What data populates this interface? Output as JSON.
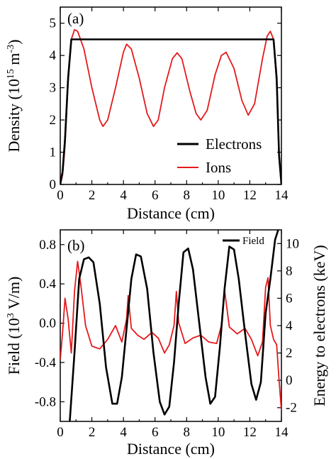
{
  "figure": {
    "colors": {
      "electrons": "#000000",
      "ions": "#e41a1c",
      "field": "#000000",
      "energy": "#e41a1c"
    }
  },
  "chart_data": [
    {
      "type": "line",
      "panel_label": "(a)",
      "xlabel": "Distance (cm)",
      "ylabel_main": "Density (10",
      "ylabel_exp1": "15",
      "ylabel_mid": " m",
      "ylabel_exp2": "-3",
      "ylabel_end": ")",
      "xlim": [
        0,
        14
      ],
      "ylim": [
        0,
        5.5
      ],
      "xticks": [
        "0",
        "2",
        "4",
        "6",
        "8",
        "10",
        "12",
        "14"
      ],
      "yticks": [
        "0",
        "1",
        "2",
        "3",
        "4",
        "5"
      ],
      "legend_position": "lower-right",
      "series": [
        {
          "name": "Electrons",
          "color": "#000000",
          "x": [
            0,
            0.15,
            0.3,
            0.5,
            0.7,
            13.5,
            13.7,
            13.85,
            14
          ],
          "y": [
            0,
            0.4,
            1.4,
            3.3,
            4.5,
            4.5,
            3.3,
            0.9,
            0
          ]
        },
        {
          "name": "Ions",
          "color": "#e41a1c",
          "x": [
            0,
            0.15,
            0.3,
            0.5,
            0.7,
            0.9,
            1.1,
            1.5,
            2.0,
            2.5,
            2.7,
            3.0,
            3.5,
            4.0,
            4.2,
            4.5,
            5.0,
            5.5,
            5.9,
            6.2,
            6.6,
            7.1,
            7.4,
            7.7,
            8.2,
            8.6,
            8.9,
            9.3,
            9.8,
            10.2,
            10.5,
            11.0,
            11.5,
            11.9,
            12.3,
            12.8,
            13.1,
            13.3,
            13.5,
            13.7,
            13.85,
            14
          ],
          "y": [
            0,
            0.3,
            1.2,
            3.2,
            4.5,
            4.8,
            4.75,
            4.2,
            3.0,
            2.0,
            1.8,
            2.0,
            3.0,
            4.1,
            4.35,
            4.2,
            3.3,
            2.2,
            1.8,
            2.0,
            3.0,
            3.9,
            4.08,
            3.9,
            2.9,
            2.2,
            2.0,
            2.3,
            3.4,
            4.0,
            4.1,
            3.6,
            2.6,
            2.15,
            2.5,
            3.9,
            4.6,
            4.75,
            4.5,
            3.1,
            0.8,
            0
          ]
        }
      ]
    },
    {
      "type": "line",
      "panel_label": "(b)",
      "xlabel": "Distance (cm)",
      "ylabel_main": "Field (10",
      "ylabel_exp1": "3",
      "ylabel_end": " V/m)",
      "ylabel_right": "Energy to electrons (keV)",
      "xlim": [
        0,
        14
      ],
      "ylim": [
        -1.0,
        0.95
      ],
      "y2lim": [
        -3,
        11
      ],
      "xticks": [
        "0",
        "2",
        "4",
        "6",
        "8",
        "10",
        "12",
        "14"
      ],
      "yticks": [
        "-0.8",
        "-0.4",
        "0.0",
        "0.4",
        "0.8"
      ],
      "y2ticks": [
        "-2",
        "0",
        "2",
        "4",
        "6",
        "8",
        "10"
      ],
      "legend_position": "top-right",
      "series": [
        {
          "name": "Field",
          "axis": "left",
          "color": "#000000",
          "x": [
            0.6,
            0.9,
            1.2,
            1.5,
            1.8,
            2.1,
            2.5,
            2.9,
            3.3,
            3.6,
            3.9,
            4.2,
            4.5,
            4.8,
            5.1,
            5.5,
            5.9,
            6.3,
            6.6,
            6.9,
            7.2,
            7.5,
            7.8,
            8.1,
            8.4,
            8.8,
            9.2,
            9.5,
            9.8,
            10.1,
            10.4,
            10.7,
            11.0,
            11.3,
            11.7,
            12.1,
            12.4,
            12.7,
            13.0,
            13.3,
            13.6,
            13.8
          ],
          "y": [
            -1.0,
            -0.3,
            0.45,
            0.65,
            0.67,
            0.62,
            0.2,
            -0.45,
            -0.82,
            -0.82,
            -0.55,
            -0.05,
            0.45,
            0.7,
            0.68,
            0.35,
            -0.3,
            -0.8,
            -0.93,
            -0.85,
            -0.4,
            0.2,
            0.72,
            0.76,
            0.55,
            0.0,
            -0.55,
            -0.82,
            -0.75,
            -0.25,
            0.35,
            0.78,
            0.75,
            0.45,
            -0.1,
            -0.62,
            -0.78,
            -0.6,
            0.1,
            0.45,
            0.85,
            0.95
          ]
        },
        {
          "name": "",
          "axis": "right",
          "color": "#e41a1c",
          "x": [
            0,
            0.15,
            0.3,
            0.5,
            0.7,
            0.9,
            1.1,
            1.3,
            1.6,
            2.0,
            2.5,
            3.0,
            3.5,
            3.9,
            4.2,
            4.3,
            4.5,
            4.9,
            5.3,
            5.8,
            6.2,
            6.6,
            6.9,
            7.2,
            7.35,
            7.5,
            7.9,
            8.4,
            8.9,
            9.4,
            9.9,
            10.2,
            10.4,
            10.7,
            11.2,
            11.7,
            12.1,
            12.5,
            12.8,
            13.0,
            13.15,
            13.3,
            13.5,
            13.7,
            13.85,
            14
          ],
          "y": [
            1.5,
            3.5,
            6.0,
            4.5,
            2.0,
            6.5,
            8.7,
            7.0,
            4.0,
            2.5,
            2.3,
            3.0,
            4.0,
            2.8,
            4.5,
            6.2,
            3.8,
            3.3,
            3.0,
            3.5,
            3.1,
            2.0,
            2.6,
            4.0,
            6.5,
            4.2,
            2.7,
            3.1,
            3.3,
            2.8,
            2.7,
            4.0,
            6.6,
            3.9,
            3.4,
            3.8,
            3.0,
            1.8,
            2.8,
            6.8,
            7.5,
            4.0,
            3.0,
            2.6,
            0.0,
            -2.2
          ]
        }
      ]
    }
  ]
}
